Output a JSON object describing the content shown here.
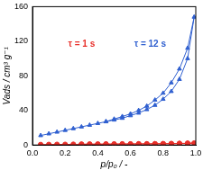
{
  "chart_data": {
    "type": "scatter",
    "x_label": "p/p₀ / -",
    "y_label": "Vads / cm³ g⁻¹",
    "xlim": [
      0,
      1
    ],
    "xticks": [
      {
        "value": 0,
        "label": "0.0"
      },
      0.2,
      0.4,
      0.6,
      0.8,
      {
        "value": 1,
        "label": "1.0"
      }
    ],
    "ylim": [
      0,
      160
    ],
    "yticks": [
      0,
      40,
      80,
      120,
      160
    ],
    "grid": false,
    "series": [
      {
        "name": "τ = 1 s",
        "color": "#e8302a",
        "marker": "circle",
        "line_style": "solid",
        "x": [
          0.05,
          0.1,
          0.15,
          0.2,
          0.25,
          0.3,
          0.35,
          0.4,
          0.45,
          0.5,
          0.55,
          0.6,
          0.65,
          0.7,
          0.75,
          0.8,
          0.85,
          0.9,
          0.95,
          0.99,
          0.95,
          0.9,
          0.85,
          0.8,
          0.75,
          0.7,
          0.65,
          0.6,
          0.55,
          0.5,
          0.45,
          0.4,
          0.35,
          0.3
        ],
        "values": [
          0.5,
          0.6,
          0.7,
          0.7,
          0.8,
          0.8,
          0.9,
          0.9,
          1.0,
          1.0,
          1.1,
          1.1,
          1.2,
          1.2,
          1.3,
          1.4,
          1.5,
          1.6,
          1.8,
          2.2,
          2.0,
          1.8,
          1.6,
          1.5,
          1.4,
          1.3,
          1.3,
          1.2,
          1.2,
          1.1,
          1.1,
          1.0,
          1.0,
          0.9
        ]
      },
      {
        "name": "τ = 12 s",
        "color": "#3060d0",
        "marker": "triangle",
        "line_style": "solid",
        "x": [
          0.05,
          0.1,
          0.15,
          0.2,
          0.25,
          0.3,
          0.35,
          0.4,
          0.45,
          0.5,
          0.55,
          0.6,
          0.65,
          0.7,
          0.75,
          0.8,
          0.85,
          0.9,
          0.95,
          0.99,
          0.95,
          0.9,
          0.85,
          0.8,
          0.75,
          0.7,
          0.65,
          0.6,
          0.55,
          0.5,
          0.45
        ],
        "values": [
          11,
          13,
          15,
          17,
          19,
          21,
          23,
          25,
          27,
          29,
          31,
          34,
          37,
          41,
          46,
          53,
          62,
          76,
          100,
          148,
          112,
          88,
          72,
          60,
          52,
          45,
          40,
          36,
          33,
          30,
          27
        ]
      }
    ]
  }
}
